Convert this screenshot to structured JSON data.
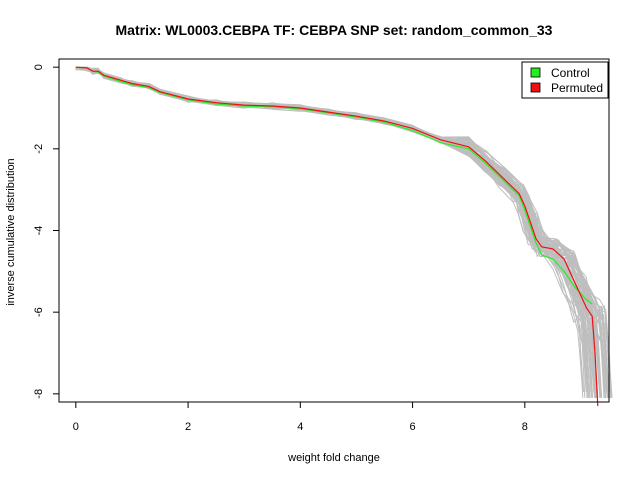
{
  "chart_data": {
    "type": "line",
    "title": "Matrix: WL0003.CEBPA TF: CEBPA SNP set: random_common_33",
    "xlabel": "weight fold change",
    "ylabel": "inverse cumulative distribution",
    "xlim": [
      -0.3,
      9.5
    ],
    "ylim": [
      -8.2,
      0.2
    ],
    "x_ticks": [
      0,
      2,
      4,
      6,
      8
    ],
    "y_ticks": [
      0,
      -2,
      -4,
      -6,
      -8
    ],
    "x_tick_labels": [
      "0",
      "2",
      "4",
      "6",
      "8"
    ],
    "y_tick_labels": [
      "0",
      "-2",
      "-4",
      "-6",
      "-8"
    ],
    "grid": false,
    "legend": {
      "position": "top-right",
      "entries": [
        {
          "label": "Control",
          "color": "#22ee22"
        },
        {
          "label": "Permuted",
          "color": "#ee1111"
        }
      ]
    },
    "colors": {
      "control": "#22ee22",
      "permuted": "#ee1111",
      "background_traces": "#bebebe"
    },
    "series": [
      {
        "name": "Permuted",
        "color": "#ee1111",
        "x": [
          0,
          0.2,
          0.3,
          0.4,
          0.5,
          0.8,
          1.0,
          1.3,
          1.5,
          2.0,
          2.5,
          3.0,
          3.5,
          4.0,
          4.5,
          5.0,
          5.5,
          6.0,
          6.5,
          7.0,
          7.3,
          7.6,
          7.9,
          8.0,
          8.1,
          8.2,
          8.3,
          8.5,
          8.7,
          8.9,
          9.1,
          9.2,
          9.25,
          9.3
        ],
        "y": [
          0,
          -0.02,
          -0.1,
          -0.1,
          -0.2,
          -0.32,
          -0.4,
          -0.47,
          -0.6,
          -0.78,
          -0.87,
          -0.93,
          -0.95,
          -1.0,
          -1.1,
          -1.2,
          -1.32,
          -1.5,
          -1.78,
          -1.95,
          -2.3,
          -2.7,
          -3.1,
          -3.4,
          -3.8,
          -4.2,
          -4.4,
          -4.45,
          -4.7,
          -5.3,
          -5.9,
          -6.1,
          -7.0,
          -8.3
        ]
      },
      {
        "name": "Control",
        "color": "#22ee22",
        "x": [
          0,
          0.2,
          0.3,
          0.4,
          0.5,
          0.8,
          1.0,
          1.3,
          1.5,
          2.0,
          2.5,
          3.0,
          3.5,
          4.0,
          4.5,
          5.0,
          5.5,
          6.0,
          6.5,
          7.0,
          7.3,
          7.6,
          7.9,
          8.0,
          8.1,
          8.2,
          8.3,
          8.5,
          8.7,
          8.9,
          9.1,
          9.2
        ],
        "y": [
          0,
          -0.02,
          -0.1,
          -0.12,
          -0.22,
          -0.35,
          -0.43,
          -0.5,
          -0.62,
          -0.8,
          -0.9,
          -0.95,
          -0.97,
          -1.02,
          -1.12,
          -1.22,
          -1.35,
          -1.55,
          -1.85,
          -2.0,
          -2.35,
          -2.75,
          -3.15,
          -3.5,
          -3.9,
          -4.3,
          -4.6,
          -4.7,
          -5.0,
          -5.4,
          -5.7,
          -5.8
        ]
      }
    ]
  }
}
